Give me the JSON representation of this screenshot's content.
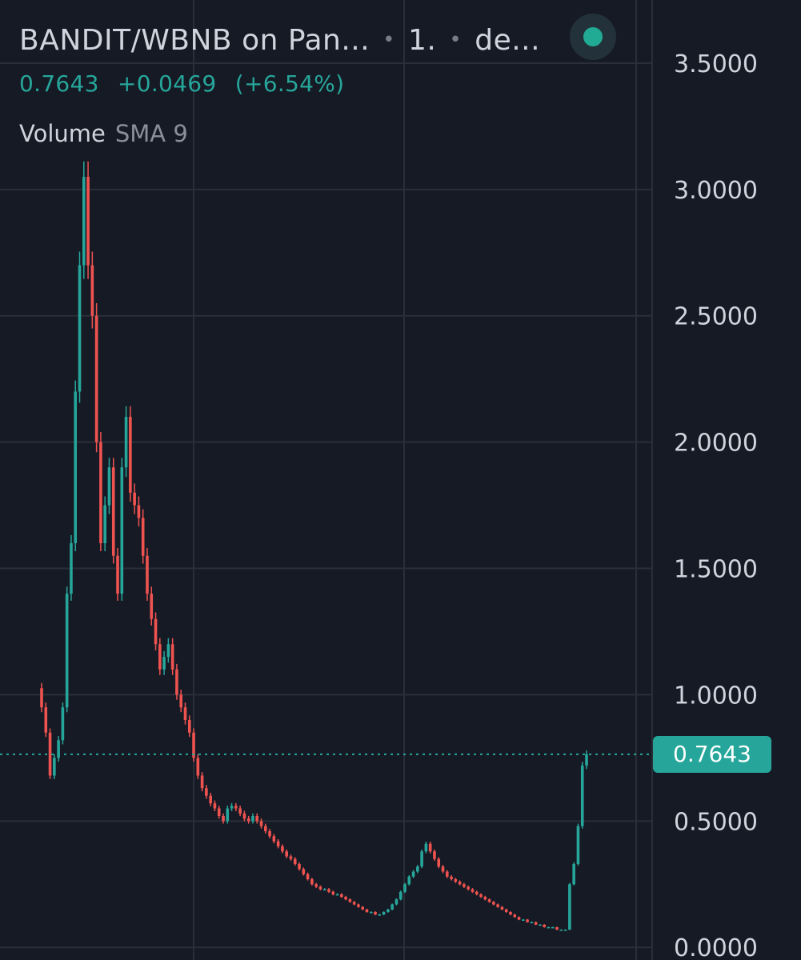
{
  "header": {
    "pair": "BANDIT/WBNB on Pan...",
    "interval": "1.",
    "source": "de...",
    "last_price": "0.7643",
    "change": "+0.0469",
    "change_pct": "(+6.54%)",
    "indicator_name": "Volume",
    "indicator_param": "SMA 9"
  },
  "live_indicator": {
    "icon": "live-dot-icon",
    "color": "#22ab94"
  },
  "colors": {
    "background": "#161a25",
    "up": "#26a69a",
    "down": "#ef5350",
    "grid": "#2a2e39",
    "text": "#d1d4dc"
  },
  "chart_data": {
    "type": "candlestick",
    "title": "BANDIT/WBNB on Pan...",
    "y_axis": {
      "position": "right",
      "range": [
        -0.05,
        3.75
      ],
      "ticks": [
        0.0,
        0.5,
        1.0,
        1.5,
        2.0,
        2.5,
        3.0,
        3.5
      ],
      "tick_labels": [
        "0.0000",
        "0.5000",
        "1.0000",
        "1.5000",
        "2.0000",
        "2.5000",
        "3.0000",
        "3.5000"
      ]
    },
    "grid": true,
    "last_price_label": "0.7643",
    "last_price": 0.7643,
    "series": [
      {
        "close": [
          0.95,
          0.85,
          0.68,
          0.75,
          0.82,
          0.95,
          1.4,
          1.6,
          2.2,
          2.7,
          3.05,
          2.7,
          2.5,
          2.0,
          1.6,
          1.75,
          1.9,
          1.55,
          1.4,
          1.9,
          2.1,
          1.8,
          1.75,
          1.7,
          1.55,
          1.4,
          1.3,
          1.2,
          1.1,
          1.15,
          1.2,
          1.1,
          1.0,
          0.95,
          0.9,
          0.85,
          0.75,
          0.68,
          0.63,
          0.6,
          0.57,
          0.55,
          0.52,
          0.5,
          0.55,
          0.56,
          0.55,
          0.53,
          0.51,
          0.5,
          0.52,
          0.5,
          0.48,
          0.46,
          0.44,
          0.42,
          0.4,
          0.38,
          0.36,
          0.35,
          0.33,
          0.31,
          0.29,
          0.27,
          0.25,
          0.24,
          0.23,
          0.23,
          0.22,
          0.21,
          0.21,
          0.2,
          0.19,
          0.18,
          0.17,
          0.16,
          0.15,
          0.14,
          0.14,
          0.13,
          0.13,
          0.14,
          0.15,
          0.17,
          0.19,
          0.22,
          0.25,
          0.28,
          0.3,
          0.32,
          0.38,
          0.41,
          0.38,
          0.35,
          0.32,
          0.3,
          0.28,
          0.27,
          0.26,
          0.25,
          0.24,
          0.23,
          0.22,
          0.21,
          0.2,
          0.19,
          0.18,
          0.17,
          0.16,
          0.15,
          0.14,
          0.13,
          0.12,
          0.11,
          0.11,
          0.1,
          0.1,
          0.09,
          0.09,
          0.08,
          0.08,
          0.08,
          0.07,
          0.07,
          0.07,
          0.25,
          0.33,
          0.48,
          0.72,
          0.7643
        ]
      }
    ]
  }
}
